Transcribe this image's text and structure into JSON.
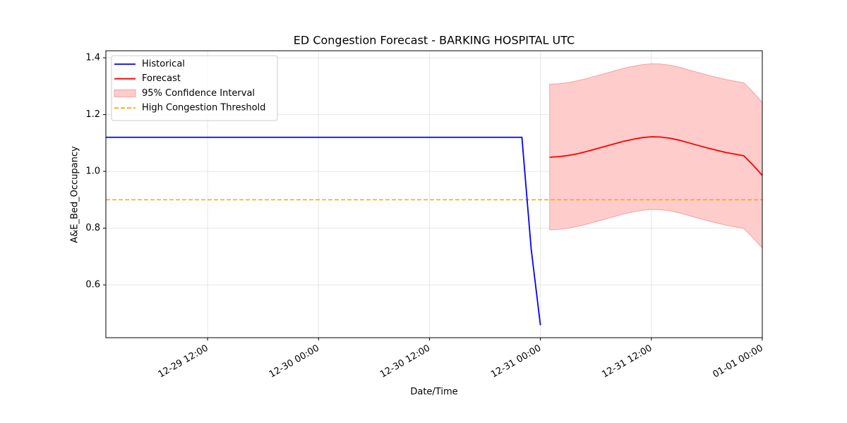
{
  "chart_data": {
    "type": "line",
    "title": "ED Congestion Forecast - BARKING HOSPITAL UTC",
    "x_label": "Date/Time",
    "y_label": "A&E_Bed_Occupancy",
    "xlim": [
      "12-29 01:00",
      "01-01 00:00"
    ],
    "xticks": [
      "12-29 12:00",
      "12-30 00:00",
      "12-30 12:00",
      "12-31 00:00",
      "12-31 12:00",
      "01-01 00:00"
    ],
    "ylim": [
      0.414,
      1.425
    ],
    "yticks": [
      {
        "value": 0.6,
        "label": "0.6"
      },
      {
        "value": 0.8,
        "label": "0.8"
      },
      {
        "value": 1.0,
        "label": "1.0"
      },
      {
        "value": 1.2,
        "label": "1.2"
      },
      {
        "value": 1.4,
        "label": "1.4"
      }
    ],
    "grid": true,
    "legend": "upper left",
    "series": [
      {
        "name": "Historical",
        "color": "#0000ff",
        "x": [
          "12-29 01:00",
          "12-30 22:00",
          "12-30 23:00",
          "12-31 00:00"
        ],
        "values": [
          1.12,
          1.12,
          0.727,
          0.458
        ]
      },
      {
        "name": "Forecast",
        "color": "#ff0000",
        "x": [
          "12-31 01:00",
          "12-31 02:00",
          "12-31 03:00",
          "12-31 04:00",
          "12-31 05:00",
          "12-31 06:00",
          "12-31 07:00",
          "12-31 08:00",
          "12-31 09:00",
          "12-31 10:00",
          "12-31 11:00",
          "12-31 12:00",
          "12-31 13:00",
          "12-31 14:00",
          "12-31 15:00",
          "12-31 16:00",
          "12-31 17:00",
          "12-31 18:00",
          "12-31 19:00",
          "12-31 20:00",
          "12-31 21:00",
          "12-31 22:00",
          "12-31 23:00",
          "01-01 00:00"
        ],
        "values": [
          1.05,
          1.052,
          1.056,
          1.062,
          1.07,
          1.079,
          1.088,
          1.097,
          1.106,
          1.113,
          1.119,
          1.122,
          1.121,
          1.117,
          1.11,
          1.101,
          1.092,
          1.083,
          1.075,
          1.067,
          1.061,
          1.055,
          1.022,
          0.986
        ]
      }
    ],
    "band": {
      "name": "95% Confidence Interval",
      "color": "#ffcccc",
      "edge_color": "#f4a0a0",
      "series": 1,
      "upper": [
        1.307,
        1.309,
        1.313,
        1.319,
        1.327,
        1.336,
        1.345,
        1.354,
        1.363,
        1.37,
        1.376,
        1.379,
        1.378,
        1.374,
        1.367,
        1.358,
        1.349,
        1.34,
        1.332,
        1.324,
        1.318,
        1.312,
        1.279,
        1.243
      ],
      "lower": [
        0.794,
        0.796,
        0.8,
        0.806,
        0.814,
        0.823,
        0.832,
        0.841,
        0.85,
        0.857,
        0.863,
        0.866,
        0.865,
        0.861,
        0.854,
        0.845,
        0.836,
        0.827,
        0.819,
        0.811,
        0.805,
        0.799,
        0.766,
        0.73
      ]
    },
    "threshold": {
      "name": "High Congestion Threshold",
      "color": "#ffa500",
      "value": 0.9
    }
  }
}
